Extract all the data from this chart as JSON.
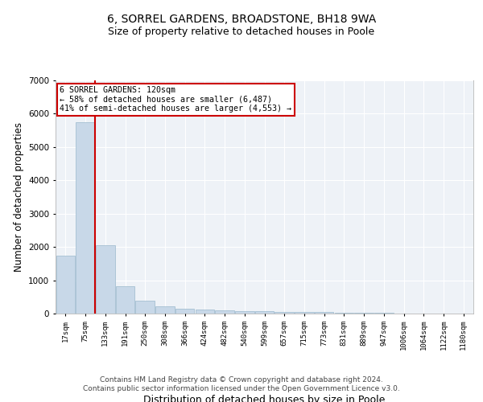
{
  "title": "6, SORREL GARDENS, BROADSTONE, BH18 9WA",
  "subtitle": "Size of property relative to detached houses in Poole",
  "xlabel": "Distribution of detached houses by size in Poole",
  "ylabel": "Number of detached properties",
  "categories": [
    "17sqm",
    "75sqm",
    "133sqm",
    "191sqm",
    "250sqm",
    "308sqm",
    "366sqm",
    "424sqm",
    "482sqm",
    "540sqm",
    "599sqm",
    "657sqm",
    "715sqm",
    "773sqm",
    "831sqm",
    "889sqm",
    "947sqm",
    "1006sqm",
    "1064sqm",
    "1122sqm",
    "1180sqm"
  ],
  "values": [
    1750,
    5750,
    2050,
    820,
    380,
    220,
    150,
    120,
    100,
    80,
    80,
    60,
    50,
    40,
    30,
    20,
    15,
    10,
    8,
    5,
    5
  ],
  "bar_color": "#c8d8e8",
  "bar_edge_color": "#9ab8cc",
  "red_line_index": 2,
  "red_line_color": "#cc0000",
  "annotation_title": "6 SORREL GARDENS: 120sqm",
  "annotation_line1": "← 58% of detached houses are smaller (6,487)",
  "annotation_line2": "41% of semi-detached houses are larger (4,553) →",
  "annotation_box_color": "#ffffff",
  "annotation_border_color": "#cc0000",
  "ylim": [
    0,
    7000
  ],
  "yticks": [
    0,
    1000,
    2000,
    3000,
    4000,
    5000,
    6000,
    7000
  ],
  "footer1": "Contains HM Land Registry data © Crown copyright and database right 2024.",
  "footer2": "Contains public sector information licensed under the Open Government Licence v3.0.",
  "background_color": "#eef2f7",
  "grid_color": "#ffffff",
  "title_fontsize": 10,
  "subtitle_fontsize": 9,
  "axis_label_fontsize": 8.5,
  "tick_fontsize": 6.5,
  "footer_fontsize": 6.5
}
